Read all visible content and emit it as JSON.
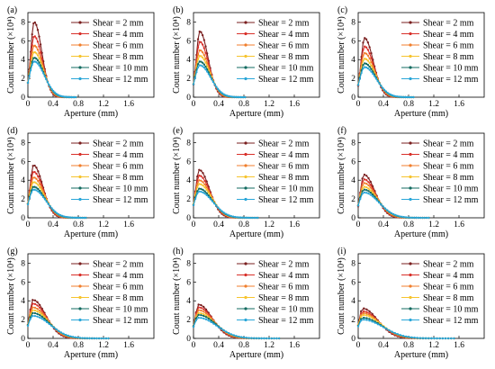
{
  "chart_data": {
    "type": "line",
    "shared": {
      "xlabel": "Aperture (mm)",
      "ylabel": "Count number (×10⁴)",
      "x_ticks": [
        "0",
        "0.4",
        "0.8",
        "1.2",
        "1.6"
      ],
      "y_ticks": [
        "0",
        "2",
        "4",
        "6",
        "8"
      ],
      "xlim": [
        0,
        2.0
      ],
      "ylim": [
        0,
        9
      ],
      "grid": false,
      "legend_position": "top-right"
    },
    "series_meta": [
      {
        "name": "Shear = 2 mm",
        "color": "#7a1f1f",
        "marker": "o"
      },
      {
        "name": "Shear = 4 mm",
        "color": "#d8302a",
        "marker": "o"
      },
      {
        "name": "Shear = 6 mm",
        "color": "#f07e2c",
        "marker": "o"
      },
      {
        "name": "Shear = 8 mm",
        "color": "#f6c42e",
        "marker": "o"
      },
      {
        "name": "Shear = 10 mm",
        "color": "#136b60",
        "marker": "o"
      },
      {
        "name": "Shear = 12 mm",
        "color": "#2aa6d8",
        "marker": "o"
      }
    ],
    "panels": [
      {
        "label": "(a)",
        "x_max": 0.76,
        "peak_x": 0.1,
        "peaks": [
          8.0,
          6.5,
          5.5,
          4.8,
          4.2,
          3.8
        ]
      },
      {
        "label": "(b)",
        "x_max": 0.82,
        "peak_x": 0.1,
        "peaks": [
          7.0,
          5.9,
          5.0,
          4.4,
          3.8,
          3.4
        ]
      },
      {
        "label": "(c)",
        "x_max": 0.88,
        "peak_x": 0.1,
        "peaks": [
          6.3,
          5.4,
          4.7,
          4.1,
          3.6,
          3.2
        ]
      },
      {
        "label": "(d)",
        "x_max": 0.92,
        "peak_x": 0.09,
        "peaks": [
          5.6,
          4.9,
          4.3,
          3.8,
          3.3,
          3.0
        ]
      },
      {
        "label": "(e)",
        "x_max": 1.02,
        "peak_x": 0.09,
        "peaks": [
          5.1,
          4.5,
          4.0,
          3.6,
          3.1,
          2.8
        ]
      },
      {
        "label": "(f)",
        "x_max": 1.12,
        "peak_x": 0.09,
        "peaks": [
          4.6,
          4.1,
          3.7,
          3.3,
          3.0,
          2.7
        ]
      },
      {
        "label": "(g)",
        "x_max": 1.28,
        "peak_x": 0.08,
        "peaks": [
          4.1,
          3.7,
          3.3,
          3.0,
          2.7,
          2.4
        ]
      },
      {
        "label": "(h)",
        "x_max": 1.36,
        "peak_x": 0.08,
        "peaks": [
          3.6,
          3.3,
          3.0,
          2.7,
          2.5,
          2.2
        ]
      },
      {
        "label": "(i)",
        "x_max": 1.52,
        "peak_x": 0.07,
        "peaks": [
          3.2,
          2.9,
          2.7,
          2.5,
          2.2,
          2.0
        ]
      }
    ]
  }
}
